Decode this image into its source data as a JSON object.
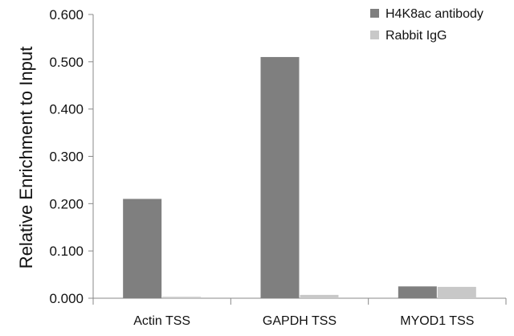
{
  "chart_data": {
    "type": "bar",
    "title": "",
    "xlabel": "",
    "ylabel": "Relative Enrichment to Input",
    "ylim": [
      0,
      0.6
    ],
    "yticks": [
      "0.000",
      "0.100",
      "0.200",
      "0.300",
      "0.400",
      "0.500",
      "0.600"
    ],
    "ytick_values": [
      0,
      0.1,
      0.2,
      0.3,
      0.4,
      0.5,
      0.6
    ],
    "categories": [
      "Actin TSS",
      "GAPDH TSS",
      "MYOD1 TSS"
    ],
    "series": [
      {
        "name": "H4K8ac antibody",
        "values": [
          0.21,
          0.51,
          0.025
        ],
        "color": "#7f7f7f"
      },
      {
        "name": "Rabbit IgG",
        "values": [
          0.003,
          0.007,
          0.024
        ],
        "color": "#c8c8c8"
      }
    ],
    "grid": false,
    "legend_position": "top-right"
  }
}
